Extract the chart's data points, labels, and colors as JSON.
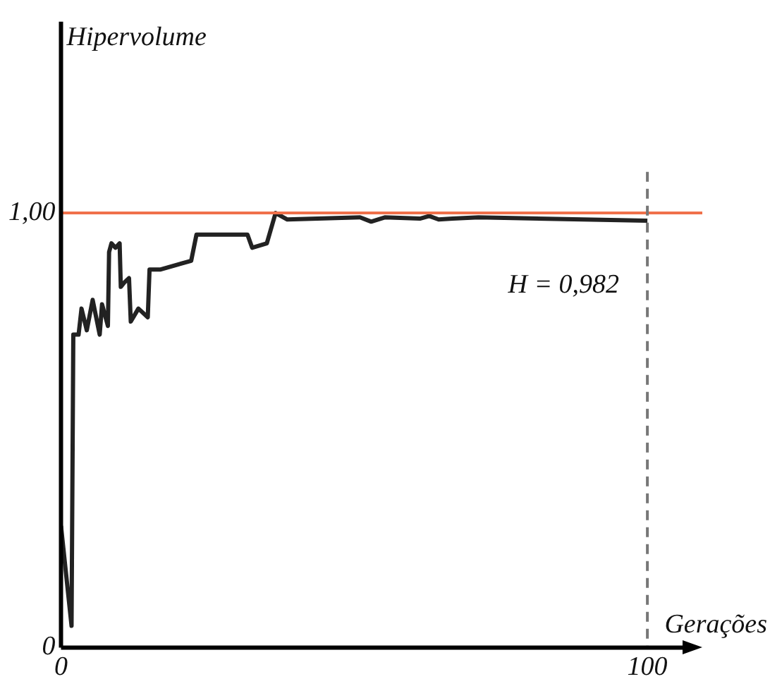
{
  "chart_data": {
    "type": "line",
    "xlabel": "Gerações",
    "ylabel": "Hipervolume",
    "series": [
      {
        "color": "#222222",
        "x": [
          0,
          1.8,
          2.1,
          3,
          3.5,
          4.4,
          5.4,
          6.6,
          7.0,
          8.0,
          8.2,
          8.6,
          9.3,
          10.0,
          10.2,
          10.8,
          11.6,
          11.9,
          13.2,
          14.8,
          15.1,
          17.0,
          22.2,
          23.1,
          24.6,
          31.8,
          32.6,
          35.1,
          36.6,
          38.6,
          51,
          52.9,
          55.3,
          61.2,
          62.8,
          64.4,
          66.8,
          71.2,
          100
        ],
        "values": [
          0.28,
          0.05,
          0.72,
          0.72,
          0.78,
          0.73,
          0.8,
          0.72,
          0.79,
          0.74,
          0.91,
          0.93,
          0.92,
          0.93,
          0.83,
          0.84,
          0.85,
          0.75,
          0.78,
          0.76,
          0.87,
          0.87,
          0.89,
          0.95,
          0.95,
          0.95,
          0.92,
          0.93,
          1.0,
          0.985,
          0.99,
          0.98,
          0.99,
          0.987,
          0.993,
          0.985,
          0.987,
          0.99,
          0.982
        ]
      }
    ],
    "xlim": [
      0,
      106
    ],
    "xticks": [
      0,
      100
    ],
    "ylim": [
      0,
      1.44
    ],
    "yticks": [
      {
        "value": 0,
        "label": "0"
      },
      {
        "value": 1,
        "label": "1,00"
      }
    ],
    "grid": false,
    "legend": false,
    "marker": "none",
    "line_style": "solid",
    "ref_lines": [
      {
        "axis": "y",
        "value": 1,
        "color": "#f0704a",
        "line_style": "solid"
      },
      {
        "axis": "x",
        "value": 100,
        "color": "#777777",
        "line_style": "dashed"
      }
    ],
    "annotations": [
      {
        "text": "H = 0,982",
        "x": 100,
        "y": 0.982
      }
    ]
  }
}
